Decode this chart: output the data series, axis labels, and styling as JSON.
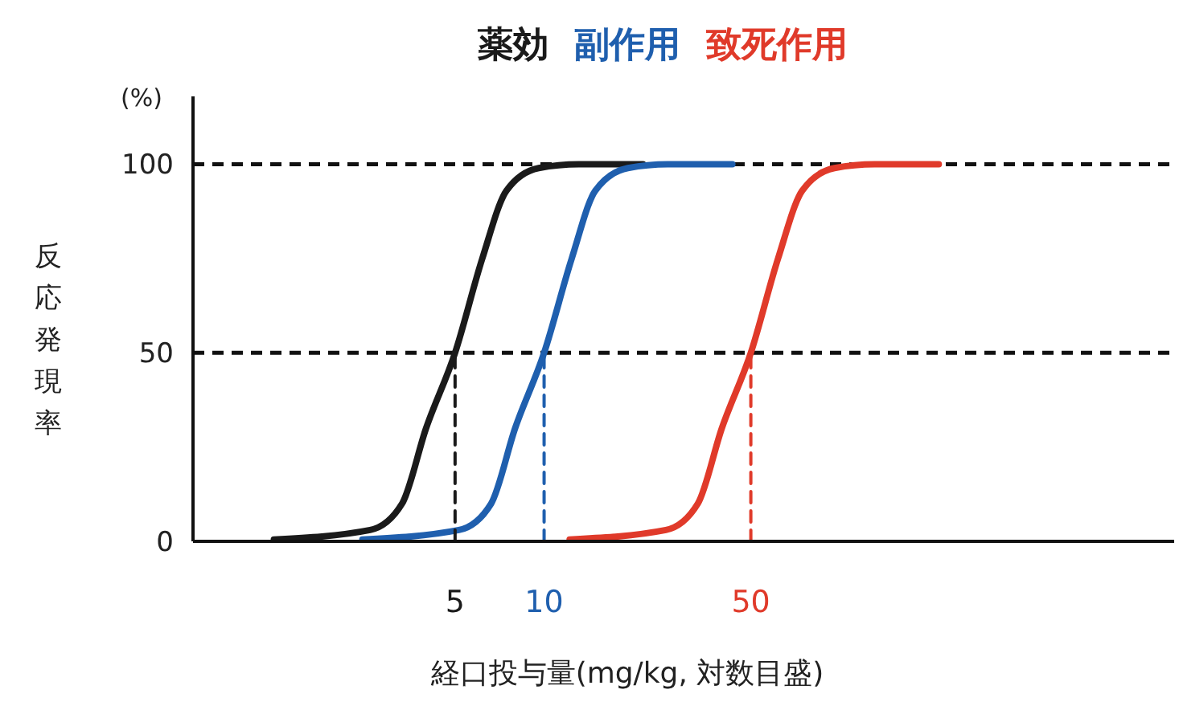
{
  "chart_data": {
    "type": "line",
    "ylabel": "反応発現率",
    "xlabel": "経口投与量(mg/kg, 対数目盛)",
    "log": "x",
    "xlim": [
      0.65,
      1350
    ],
    "xticks": [
      5,
      10,
      50
    ],
    "ylim": [
      0,
      118
    ],
    "yticks": [
      0,
      50,
      100
    ],
    "grid": false,
    "legend": "top",
    "line_style": "solid",
    "marker": "none",
    "annotations": [
      "(%)"
    ],
    "ref_lines": [
      {
        "axis": "y",
        "value": 100,
        "color": "#111111",
        "line_style": "dashed"
      },
      {
        "axis": "y",
        "value": 50,
        "color": "#111111",
        "line_style": "dashed"
      }
    ],
    "series": [
      {
        "name": "薬効",
        "color": "#1a1a1a",
        "x": [
          1.22,
          2.58,
          3.31,
          3.99,
          5,
          6.18,
          7.46,
          9.59,
          13.1,
          21.6
        ],
        "values": [
          0.5,
          3,
          10,
          30,
          50,
          75,
          93,
          99,
          100,
          100
        ]
      },
      {
        "name": "副作用",
        "color": "#1f5fae",
        "x": [
          2.43,
          5.15,
          6.62,
          7.98,
          10,
          12.4,
          14.9,
          19.2,
          26.2,
          43.3
        ],
        "values": [
          0.5,
          3,
          10,
          30,
          50,
          75,
          93,
          99,
          100,
          100
        ]
      },
      {
        "name": "致死作用",
        "color": "#e03a2a",
        "x": [
          12.2,
          25.8,
          33.1,
          39.9,
          50,
          61.8,
          74.6,
          95.9,
          131,
          216
        ],
        "values": [
          0.5,
          3,
          10,
          30,
          50,
          75,
          93,
          99,
          100,
          100
        ]
      },
      {
        "type": "line",
        "color": "#1a1a1a",
        "line_style": "dashed",
        "x": [
          5,
          5
        ],
        "values": [
          0,
          50
        ]
      },
      {
        "type": "line",
        "color": "#1f5fae",
        "line_style": "dashed",
        "x": [
          10,
          10
        ],
        "values": [
          0,
          50
        ]
      },
      {
        "type": "line",
        "color": "#e03a2a",
        "line_style": "dashed",
        "x": [
          50,
          50
        ],
        "values": [
          0,
          50
        ]
      }
    ]
  }
}
